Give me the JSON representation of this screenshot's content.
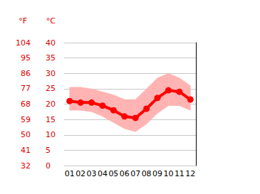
{
  "chart_data": {
    "type": "line",
    "categories": [
      "01",
      "02",
      "03",
      "04",
      "05",
      "06",
      "07",
      "08",
      "09",
      "10",
      "11",
      "12"
    ],
    "ylabel": "°C",
    "y2label": "°F",
    "ylim": [
      0,
      40
    ],
    "yticks": [
      0,
      5,
      10,
      15,
      20,
      25,
      30,
      35,
      40
    ],
    "y2lim": [
      32,
      104
    ],
    "y2ticks": [
      32,
      41,
      50,
      59,
      68,
      77,
      86,
      95,
      104
    ],
    "grid": true,
    "series": [
      {
        "type": "band",
        "color": "#ffb3b3",
        "low": [
          18,
          18,
          17.5,
          16,
          14,
          12,
          11,
          13.5,
          17,
          19.5,
          19.5,
          18
        ],
        "high": [
          25.5,
          25.5,
          25,
          24,
          23,
          21.5,
          21.5,
          25,
          28.5,
          30,
          28.5,
          26
        ]
      },
      {
        "type": "line",
        "color": "#ff0000",
        "marker": "circle",
        "values": [
          21,
          20.5,
          20.5,
          19.5,
          18,
          16,
          15.5,
          18.5,
          22,
          24.5,
          24,
          21.5
        ]
      }
    ]
  }
}
